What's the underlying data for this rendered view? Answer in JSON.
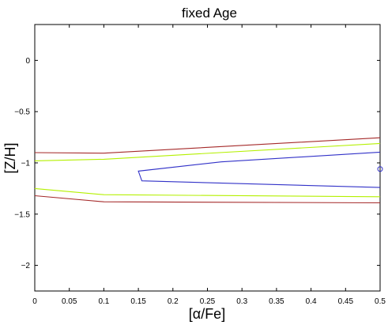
{
  "chart_data": {
    "type": "line",
    "title": "fixed Age",
    "xlabel": "[α/Fe]",
    "ylabel": "[Z/H]",
    "xlim": [
      0,
      0.5
    ],
    "ylim": [
      -2.25,
      0.35
    ],
    "grid": false,
    "x_ticks": [
      0,
      0.05,
      0.1,
      0.15,
      0.2,
      0.25,
      0.3,
      0.35,
      0.4,
      0.45,
      0.5
    ],
    "x_tick_labels": [
      "0",
      "0.05",
      "0.1",
      "0.15",
      "0.2",
      "0.25",
      "0.3",
      "0.35",
      "0.4",
      "0.45",
      "0.5"
    ],
    "y_ticks": [
      0,
      -0.5,
      -1,
      -1.5,
      -2
    ],
    "y_tick_labels": [
      "0",
      "−0.5",
      "−1",
      "−1.5",
      "−2"
    ],
    "series": [
      {
        "color": "#a52a2a",
        "segments": [
          {
            "x": [
              0,
              0.1,
              0.5
            ],
            "y": [
              -0.9,
              -0.905,
              -0.755
            ]
          },
          {
            "x": [
              0,
              0.1,
              0.5
            ],
            "y": [
              -1.32,
              -1.38,
              -1.39
            ]
          }
        ]
      },
      {
        "color": "#b4f000",
        "segments": [
          {
            "x": [
              0,
              0.1,
              0.5
            ],
            "y": [
              -0.98,
              -0.965,
              -0.81
            ]
          },
          {
            "x": [
              0,
              0.1,
              0.5
            ],
            "y": [
              -1.25,
              -1.31,
              -1.33
            ]
          }
        ]
      },
      {
        "color": "#3232c8",
        "segments": [
          {
            "x": [
              0.5,
              0.27,
              0.15,
              0.155,
              0.5
            ],
            "y": [
              -0.895,
              -0.99,
              -1.08,
              -1.175,
              -1.24
            ]
          }
        ]
      }
    ],
    "markers": [
      {
        "x": 0.5,
        "y": -1.06,
        "shape": "circle",
        "color": "#3232c8"
      }
    ]
  }
}
